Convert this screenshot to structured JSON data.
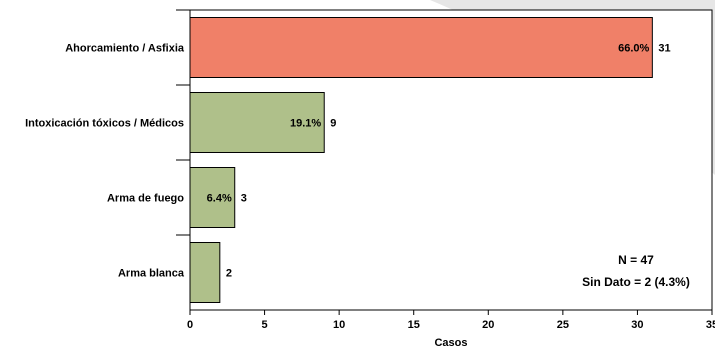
{
  "chart_data": {
    "type": "bar",
    "orientation": "horizontal",
    "categories": [
      "Ahorcamiento / Asfixia",
      "Intoxicación tóxicos / Médicos",
      "Arma de fuego",
      "Arma blanca"
    ],
    "values": [
      31,
      9,
      3,
      2
    ],
    "percent_labels": [
      "66.0%",
      "19.1%",
      "6.4%",
      ""
    ],
    "colors": [
      "#F08068",
      "#AFC08A",
      "#AFC08A",
      "#AFC08A"
    ],
    "xlabel": "Casos",
    "xlim": [
      0,
      35
    ],
    "xticks": [
      "0",
      "5",
      "10",
      "15",
      "20",
      "25",
      "30",
      "35"
    ],
    "grid": false,
    "annotations": [
      "N = 47",
      "Sin Dato = 2 (4.3%)"
    ]
  }
}
